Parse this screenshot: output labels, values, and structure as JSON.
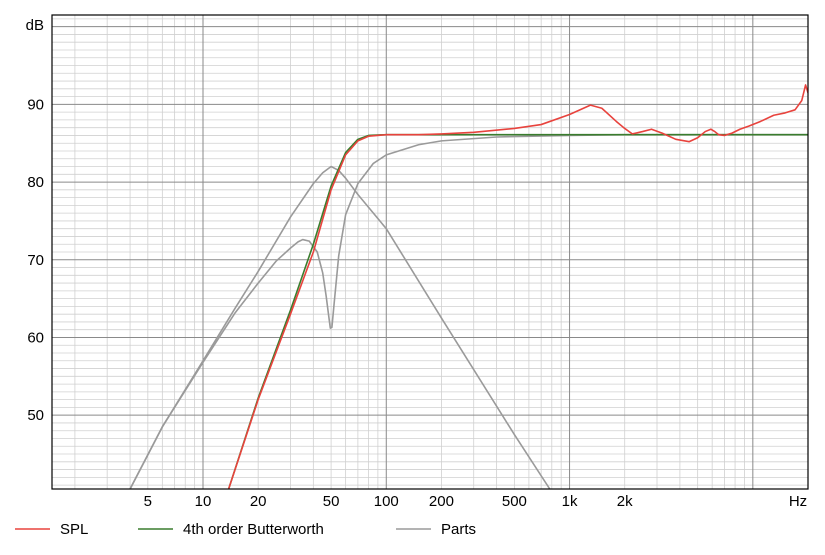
{
  "chart_data": {
    "type": "line",
    "ylabel": "dB",
    "xunit": "Hz",
    "xscale": "log",
    "xlim": [
      1.5,
      20000
    ],
    "ylim": [
      40.5,
      101.5
    ],
    "grid": true,
    "legend_position": "bottom",
    "x_ticks": [
      {
        "value": 5,
        "label": "5"
      },
      {
        "value": 10,
        "label": "10"
      },
      {
        "value": 20,
        "label": "20"
      },
      {
        "value": 50,
        "label": "50"
      },
      {
        "value": 100,
        "label": "100"
      },
      {
        "value": 200,
        "label": "200"
      },
      {
        "value": 500,
        "label": "500"
      },
      {
        "value": 1000,
        "label": "1k"
      },
      {
        "value": 2000,
        "label": "2k"
      }
    ],
    "y_ticks": [
      {
        "value": 50,
        "label": "50"
      },
      {
        "value": 60,
        "label": "60"
      },
      {
        "value": 70,
        "label": "70"
      },
      {
        "value": 80,
        "label": "80"
      },
      {
        "value": 90,
        "label": "90"
      }
    ],
    "series": [
      {
        "name": "SPL",
        "color": "#e8433d",
        "legend": true,
        "x": [
          13.8,
          20,
          30,
          40,
          50,
          60,
          70,
          80,
          100,
          150,
          200,
          300,
          500,
          700,
          1000,
          1300,
          1500,
          1800,
          2000,
          2200,
          2500,
          2800,
          3200,
          3800,
          4500,
          5000,
          5500,
          5900,
          6200,
          6500,
          7000,
          7700,
          8500,
          9500,
          11000,
          13000,
          15000,
          17000,
          18500,
          19400,
          20000
        ],
        "y": [
          40.5,
          52,
          63,
          71,
          79,
          83.5,
          85.3,
          85.9,
          86.1,
          86.1,
          86.2,
          86.4,
          86.9,
          87.4,
          88.7,
          89.9,
          89.5,
          87.8,
          86.9,
          86.2,
          86.5,
          86.8,
          86.3,
          85.5,
          85.2,
          85.7,
          86.5,
          86.8,
          86.5,
          86.1,
          86.0,
          86.3,
          86.8,
          87.2,
          87.8,
          88.6,
          88.9,
          89.3,
          90.5,
          92.5,
          91.5
        ]
      },
      {
        "name": "4th order Butterworth",
        "color": "#3a7d2e",
        "legend": true,
        "x": [
          13.8,
          20,
          30,
          40,
          50,
          60,
          70,
          80,
          100,
          200,
          500,
          1000,
          2000,
          5000,
          10000,
          20000
        ],
        "y": [
          40.5,
          52.2,
          63.5,
          72,
          79.5,
          83.8,
          85.5,
          86.0,
          86.1,
          86.1,
          86.1,
          86.1,
          86.1,
          86.1,
          86.1,
          86.1
        ]
      },
      {
        "name": "Parts",
        "color": "#9a9a9a",
        "legend": true,
        "x": [
          4,
          6,
          10,
          15,
          20,
          30,
          40,
          45,
          50,
          55,
          60,
          70,
          100,
          200,
          500,
          780
        ],
        "y": [
          40.5,
          48.5,
          57,
          63.8,
          68.5,
          75.5,
          79.8,
          81.2,
          82.0,
          81.5,
          80.5,
          78.4,
          74.0,
          62.5,
          47.5,
          40.5
        ]
      },
      {
        "name": "Parts",
        "color": "#9a9a9a",
        "legend": false,
        "x": [
          4,
          6,
          10,
          15,
          20,
          25,
          30,
          33,
          35,
          38,
          42,
          45,
          47,
          48.5,
          49.5,
          50.5,
          52,
          55,
          60,
          70,
          85,
          100,
          150,
          200,
          400,
          1000,
          2000,
          5000,
          10000,
          20000
        ],
        "y": [
          40.5,
          48.5,
          56.8,
          63.2,
          67,
          69.8,
          71.5,
          72.3,
          72.6,
          72.4,
          71.0,
          68.3,
          65.3,
          62.8,
          61.2,
          61.3,
          64.5,
          70.5,
          75.8,
          79.8,
          82.4,
          83.5,
          84.8,
          85.3,
          85.8,
          86.0,
          86.1,
          86.1,
          86.1,
          86.1
        ]
      }
    ]
  }
}
